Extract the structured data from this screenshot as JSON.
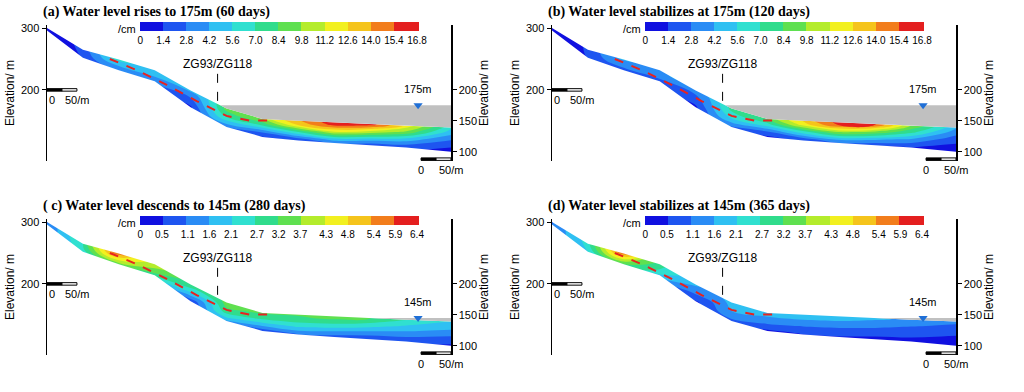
{
  "chart_data": [
    {
      "type": "contour",
      "title": "(a) Water level rises to 175m (60 days)",
      "y_label": "Elevation/ m",
      "y2_label": "Elevation/ m",
      "xlim": [
        0,
        675
      ],
      "ylim": [
        85,
        305
      ],
      "yticks": [
        200,
        300
      ],
      "y2lim": [
        85,
        305
      ],
      "y2ticks": [
        100,
        150,
        200
      ],
      "tick_labels": "y",
      "grid": false,
      "x": [
        0,
        60,
        120,
        180,
        240,
        300,
        360,
        420,
        480,
        540,
        600,
        675
      ],
      "y": [
        95,
        108,
        120,
        132,
        144,
        156,
        170,
        190,
        220,
        255,
        305
      ],
      "z": [
        [
          0.5,
          0.5,
          0.5,
          0.5,
          0.5,
          0.5,
          0.5,
          0.5,
          0.5,
          0.5,
          0.5,
          0.5
        ],
        [
          0.5,
          0.5,
          0.5,
          0.5,
          0.5,
          0.5,
          0.5,
          0.5,
          1,
          1,
          2,
          1.5
        ],
        [
          0.5,
          0.5,
          0.5,
          0.5,
          0.5,
          0.5,
          0.5,
          2,
          5,
          5,
          5,
          3
        ],
        [
          0.5,
          0.5,
          0.5,
          0.5,
          0.5,
          1,
          3,
          7,
          11,
          10.5,
          9.5,
          5
        ],
        [
          0.5,
          0.5,
          0.5,
          0.5,
          0.5,
          4,
          7.5,
          13,
          16,
          16,
          12.5,
          6.5
        ],
        [
          0.5,
          0.5,
          0.5,
          0.5,
          0.5,
          7,
          10.5,
          14.5,
          16.5,
          16.5,
          12.5,
          6.5
        ],
        [
          0.5,
          0.5,
          0.5,
          0.5,
          1,
          9,
          10.5,
          14.5,
          16.5,
          16.5,
          12.5,
          6.5
        ],
        [
          0.5,
          0.5,
          0.5,
          0.5,
          3,
          9,
          10.5,
          14.5,
          16.5,
          16.5,
          12.5,
          6.5
        ],
        [
          0.5,
          0.5,
          1,
          4,
          8,
          9,
          10.5,
          14.5,
          16.5,
          16.5,
          12.5,
          6.5
        ],
        [
          0.5,
          1.5,
          7,
          7.5,
          8,
          9,
          10.5,
          14.5,
          16.5,
          16.5,
          12.5,
          6.5
        ],
        [
          0.5,
          2,
          7,
          7.5,
          8,
          9,
          10.5,
          14.5,
          16.5,
          16.5,
          12.5,
          6.5
        ]
      ],
      "colorbar": {
        "title": "/cm",
        "ticks": [
          0,
          1.4,
          2.8,
          4.2,
          5.6,
          {
            "value": 7,
            "label": "7.0"
          },
          8.4,
          9.8,
          11.2,
          12.6,
          {
            "value": 14,
            "label": "14.0"
          },
          15.4,
          16.8
        ],
        "colors": [
          "#1010e0",
          "#1e55f0",
          "#2a8cf5",
          "#2fc0f2",
          "#30e0d0",
          "#30dc8c",
          "#5fe050",
          "#b4ec2c",
          "#f2f020",
          "#f5c41c",
          "#f27d1c",
          "#e41f1f"
        ]
      },
      "profile": {
        "x": [
          0,
          60,
          120,
          180,
          240,
          300,
          360,
          420,
          480,
          540,
          600,
          675
        ],
        "surface": [
          300,
          265,
          249,
          232,
          199,
          170,
          153,
          150,
          147,
          145,
          142,
          139
        ],
        "bottom": [
          296,
          252,
          232,
          214,
          172,
          140,
          124,
          118,
          114,
          111,
          107,
          100
        ]
      },
      "slip_surface": {
        "x": [
          105,
          150,
          200,
          250,
          300,
          340,
          380
        ],
        "y": [
          250,
          232,
          208,
          182,
          158,
          150,
          151
        ],
        "color": "#e8231f",
        "line_style": "dash"
      },
      "borehole": {
        "label": "ZG93/ZG118",
        "x": 285,
        "y": [
          226,
          178
        ]
      },
      "water_level": {
        "value": 175,
        "label": "175m",
        "color": "#c0c0c0"
      },
      "scale_bar": {
        "length": 50,
        "labels": [
          "0",
          "50/m"
        ]
      }
    },
    {
      "type": "contour",
      "title": "(b) Water level stabilizes at 175m (120 days)",
      "y_label": "Elevation/ m",
      "y2_label": "Elevation/ m",
      "xlim": [
        0,
        675
      ],
      "ylim": [
        85,
        305
      ],
      "yticks": [
        200,
        300
      ],
      "y2lim": [
        85,
        305
      ],
      "y2ticks": [
        100,
        150,
        200
      ],
      "tick_labels": "y",
      "grid": false,
      "x": [
        0,
        60,
        120,
        180,
        240,
        300,
        360,
        420,
        480,
        540,
        600,
        675
      ],
      "y": [
        95,
        108,
        120,
        132,
        144,
        156,
        170,
        190,
        220,
        255,
        305
      ],
      "z": [
        [
          0.5,
          0.5,
          0.5,
          0.5,
          0.5,
          0.5,
          0.5,
          0.5,
          0.5,
          0.5,
          0.5,
          0.5
        ],
        [
          0.5,
          0.5,
          0.5,
          0.5,
          0.5,
          0.5,
          0.5,
          0.5,
          1,
          1,
          1.5,
          1
        ],
        [
          0.5,
          0.5,
          0.5,
          0.5,
          0.5,
          0.5,
          0.5,
          2,
          4.5,
          4.5,
          4,
          2
        ],
        [
          0.5,
          0.5,
          0.5,
          0.5,
          0.5,
          1,
          2.5,
          6.5,
          10,
          9.5,
          7.5,
          3.5
        ],
        [
          0.5,
          0.5,
          0.5,
          0.5,
          0.5,
          3.5,
          6.5,
          12,
          15.8,
          15.5,
          10,
          5
        ],
        [
          0.5,
          0.5,
          0.5,
          0.5,
          0.5,
          6,
          9,
          13.5,
          16.3,
          16,
          10,
          5
        ],
        [
          0.5,
          0.5,
          0.5,
          0.5,
          1,
          7.5,
          9,
          13.5,
          16.3,
          16,
          10,
          5
        ],
        [
          0.5,
          0.5,
          0.5,
          0.5,
          2.5,
          7.5,
          9,
          13.5,
          16.3,
          16,
          10,
          5
        ],
        [
          0.5,
          0.5,
          1,
          3,
          6.5,
          7.5,
          9,
          13.5,
          16.3,
          16,
          10,
          5
        ],
        [
          0.5,
          1.5,
          5,
          5.5,
          6.5,
          7.5,
          9,
          13.5,
          16.3,
          16,
          10,
          5
        ],
        [
          0.5,
          1.5,
          5,
          5.5,
          6.5,
          7.5,
          9,
          13.5,
          16.3,
          16,
          10,
          5
        ]
      ],
      "colorbar": {
        "title": "/cm",
        "ticks": [
          0,
          1.4,
          2.8,
          4.2,
          5.6,
          {
            "value": 7,
            "label": "7.0"
          },
          8.4,
          9.8,
          11.2,
          12.6,
          {
            "value": 14,
            "label": "14.0"
          },
          15.4,
          16.8
        ],
        "colors": [
          "#1010e0",
          "#1e55f0",
          "#2a8cf5",
          "#2fc0f2",
          "#30e0d0",
          "#30dc8c",
          "#5fe050",
          "#b4ec2c",
          "#f2f020",
          "#f5c41c",
          "#f27d1c",
          "#e41f1f"
        ]
      },
      "profile": {
        "x": [
          0,
          60,
          120,
          180,
          240,
          300,
          360,
          420,
          480,
          540,
          600,
          675
        ],
        "surface": [
          300,
          265,
          249,
          232,
          199,
          170,
          153,
          150,
          147,
          145,
          142,
          139
        ],
        "bottom": [
          296,
          252,
          232,
          214,
          172,
          140,
          124,
          118,
          114,
          111,
          107,
          100
        ]
      },
      "slip_surface": {
        "x": [
          105,
          150,
          200,
          250,
          300,
          340,
          380
        ],
        "y": [
          250,
          232,
          208,
          182,
          158,
          150,
          151
        ],
        "color": "#e8231f",
        "line_style": "dash"
      },
      "borehole": {
        "label": "ZG93/ZG118",
        "x": 285,
        "y": [
          226,
          178
        ]
      },
      "water_level": {
        "value": 175,
        "label": "175m",
        "color": "#c0c0c0"
      },
      "scale_bar": {
        "length": 50,
        "labels": [
          "0",
          "50/m"
        ]
      }
    },
    {
      "type": "contour",
      "title": "( c) Water level descends to 145m (280 days)",
      "y_label": "Elevation/ m",
      "y2_label": "Elevation/ m",
      "xlim": [
        0,
        675
      ],
      "ylim": [
        85,
        305
      ],
      "yticks": [
        200,
        300
      ],
      "y2lim": [
        85,
        305
      ],
      "y2ticks": [
        100,
        150,
        200
      ],
      "tick_labels": "y",
      "grid": false,
      "x": [
        0,
        60,
        120,
        180,
        240,
        300,
        360,
        420,
        480,
        540,
        600,
        675
      ],
      "y": [
        95,
        108,
        120,
        132,
        144,
        156,
        170,
        190,
        220,
        255,
        305
      ],
      "z": [
        [
          0.3,
          0.3,
          0.3,
          0.3,
          0.3,
          0.3,
          0.3,
          0.3,
          0.3,
          0.3,
          0.3,
          0.3
        ],
        [
          0.3,
          0.3,
          0.3,
          0.3,
          0.3,
          0.3,
          0.3,
          0.3,
          0.4,
          0.5,
          0.7,
          0.7
        ],
        [
          0.3,
          0.3,
          0.3,
          0.3,
          0.3,
          0.3,
          0.3,
          1.2,
          1.3,
          1.3,
          1.4,
          1.3
        ],
        [
          0.3,
          0.3,
          0.3,
          0.3,
          0.3,
          0.5,
          1.6,
          2.3,
          2.4,
          2.3,
          2.1,
          1.9
        ],
        [
          0.3,
          0.3,
          0.3,
          0.3,
          0.3,
          2,
          2.8,
          3.1,
          3.3,
          3.2,
          2.8,
          2.3
        ],
        [
          0.3,
          0.3,
          0.3,
          0.3,
          0.3,
          3,
          3.4,
          3.4,
          3.4,
          3.3,
          2.8,
          2.3
        ],
        [
          0.3,
          0.3,
          0.3,
          0.3,
          0.5,
          3.5,
          3.4,
          3.4,
          3.4,
          3.3,
          2.8,
          2.3
        ],
        [
          0.3,
          0.3,
          0.3,
          0.3,
          2.5,
          3.5,
          3.4,
          3.4,
          3.4,
          3.3,
          2.8,
          2.3
        ],
        [
          0.3,
          0.3,
          2,
          3.5,
          4,
          3.5,
          3.4,
          3.4,
          3.4,
          3.3,
          2.8,
          2.3
        ],
        [
          1,
          2.5,
          6.35,
          5,
          4,
          3.5,
          3.4,
          3.4,
          3.4,
          3.3,
          2.8,
          2.3
        ],
        [
          1,
          3,
          6.35,
          5,
          4,
          3.5,
          3.4,
          3.4,
          3.4,
          3.3,
          2.8,
          2.3
        ]
      ],
      "colorbar": {
        "title": "/cm",
        "ticks": [
          0,
          0.5,
          1.1,
          1.6,
          2.1,
          2.7,
          3.2,
          3.7,
          4.3,
          4.8,
          5.4,
          5.9,
          6.4
        ],
        "colors": [
          "#1010e0",
          "#1e55f0",
          "#2a8cf5",
          "#2fc0f2",
          "#30e0d0",
          "#30dc8c",
          "#5fe050",
          "#b4ec2c",
          "#f2f020",
          "#f5c41c",
          "#f27d1c",
          "#e41f1f"
        ]
      },
      "profile": {
        "x": [
          0,
          60,
          120,
          180,
          240,
          300,
          360,
          420,
          480,
          540,
          600,
          675
        ],
        "surface": [
          300,
          265,
          249,
          232,
          199,
          170,
          153,
          150,
          147,
          145,
          142,
          139
        ],
        "bottom": [
          296,
          252,
          232,
          214,
          172,
          140,
          124,
          118,
          114,
          111,
          107,
          100
        ]
      },
      "slip_surface": {
        "x": [
          105,
          150,
          200,
          250,
          300,
          340,
          380
        ],
        "y": [
          250,
          232,
          208,
          182,
          158,
          150,
          151
        ],
        "color": "#e8231f",
        "line_style": "dash"
      },
      "borehole": {
        "label": "ZG93/ZG118",
        "x": 285,
        "y": [
          226,
          178
        ]
      },
      "water_level": {
        "value": 145,
        "label": "145m",
        "color": "#c0c0c0"
      },
      "scale_bar": {
        "length": 50,
        "labels": [
          "0",
          "50/m"
        ]
      }
    },
    {
      "type": "contour",
      "title": "(d) Water level stabilizes at 145m (365 days)",
      "y_label": "Elevation/ m",
      "y2_label": "Elevation/ m",
      "xlim": [
        0,
        675
      ],
      "ylim": [
        85,
        305
      ],
      "yticks": [
        200,
        300
      ],
      "y2lim": [
        85,
        305
      ],
      "y2ticks": [
        100,
        150,
        200
      ],
      "tick_labels": "y",
      "grid": false,
      "x": [
        0,
        60,
        120,
        180,
        240,
        300,
        360,
        420,
        480,
        540,
        600,
        675
      ],
      "y": [
        95,
        108,
        120,
        132,
        144,
        156,
        170,
        190,
        220,
        255,
        305
      ],
      "z": [
        [
          0.2,
          0.2,
          0.2,
          0.2,
          0.2,
          0.2,
          0.2,
          0.2,
          0.2,
          0.2,
          0.2,
          0.2
        ],
        [
          0.2,
          0.2,
          0.2,
          0.2,
          0.2,
          0.2,
          0.2,
          0.2,
          0.3,
          0.3,
          0.4,
          0.4
        ],
        [
          0.2,
          0.2,
          0.2,
          0.2,
          0.2,
          0.2,
          0.2,
          0.6,
          0.7,
          0.7,
          0.7,
          0.6
        ],
        [
          0.2,
          0.2,
          0.2,
          0.2,
          0.2,
          0.4,
          0.9,
          1.1,
          1.2,
          1.2,
          1.1,
          1
        ],
        [
          0.2,
          0.2,
          0.2,
          0.2,
          0.2,
          1.1,
          1.5,
          1.7,
          1.8,
          1.7,
          1.5,
          1.3
        ],
        [
          0.2,
          0.2,
          0.2,
          0.2,
          0.2,
          1.6,
          1.9,
          1.9,
          1.9,
          1.8,
          1.5,
          1.3
        ],
        [
          0.2,
          0.2,
          0.2,
          0.2,
          0.4,
          1.8,
          1.9,
          1.9,
          1.9,
          1.8,
          1.5,
          1.3
        ],
        [
          0.2,
          0.2,
          0.2,
          0.2,
          1.4,
          1.8,
          1.9,
          1.9,
          1.9,
          1.8,
          1.5,
          1.3
        ],
        [
          0.2,
          0.2,
          1.5,
          2.5,
          2.3,
          1.8,
          1.9,
          1.9,
          1.9,
          1.8,
          1.5,
          1.3
        ],
        [
          1,
          2.2,
          6.35,
          4,
          2.3,
          1.8,
          1.9,
          1.9,
          1.9,
          1.8,
          1.5,
          1.3
        ],
        [
          1,
          2.6,
          6.35,
          4,
          2.3,
          1.8,
          1.9,
          1.9,
          1.9,
          1.8,
          1.5,
          1.3
        ]
      ],
      "colorbar": {
        "title": "/cm",
        "ticks": [
          0,
          0.5,
          1.1,
          1.6,
          2.1,
          2.7,
          3.2,
          3.7,
          4.3,
          4.8,
          5.4,
          5.9,
          6.4
        ],
        "colors": [
          "#1010e0",
          "#1e55f0",
          "#2a8cf5",
          "#2fc0f2",
          "#30e0d0",
          "#30dc8c",
          "#5fe050",
          "#b4ec2c",
          "#f2f020",
          "#f5c41c",
          "#f27d1c",
          "#e41f1f"
        ]
      },
      "profile": {
        "x": [
          0,
          60,
          120,
          180,
          240,
          300,
          360,
          420,
          480,
          540,
          600,
          675
        ],
        "surface": [
          300,
          265,
          249,
          232,
          199,
          170,
          153,
          150,
          147,
          145,
          142,
          139
        ],
        "bottom": [
          296,
          252,
          232,
          214,
          172,
          140,
          124,
          118,
          114,
          111,
          107,
          100
        ]
      },
      "slip_surface": {
        "x": [
          105,
          150,
          200,
          250,
          300,
          340,
          380
        ],
        "y": [
          250,
          232,
          208,
          182,
          158,
          150,
          151
        ],
        "color": "#e8231f",
        "line_style": "dash"
      },
      "borehole": {
        "label": "ZG93/ZG118",
        "x": 285,
        "y": [
          226,
          178
        ]
      },
      "water_level": {
        "value": 145,
        "label": "145m",
        "color": "#c0c0c0"
      },
      "scale_bar": {
        "length": 50,
        "labels": [
          "0",
          "50/m"
        ]
      }
    }
  ]
}
